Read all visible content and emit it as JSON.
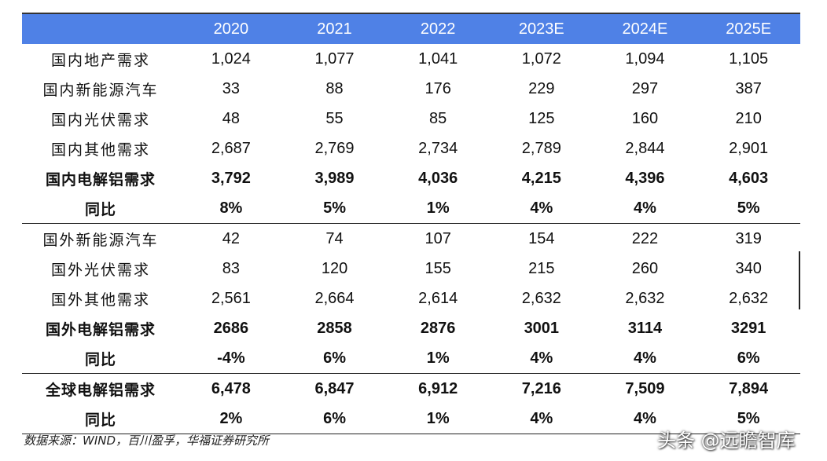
{
  "chart_data": {
    "type": "table",
    "columns": [
      "",
      "2020",
      "2021",
      "2022",
      "2023E",
      "2024E",
      "2025E"
    ],
    "rows": [
      {
        "label": "国内地产需求",
        "values": [
          "1,024",
          "1,077",
          "1,041",
          "1,072",
          "1,094",
          "1,105"
        ],
        "bold": false,
        "section_start": false
      },
      {
        "label": "国内新能源汽车",
        "values": [
          "33",
          "88",
          "176",
          "229",
          "297",
          "387"
        ],
        "bold": false,
        "section_start": false
      },
      {
        "label": "国内光伏需求",
        "values": [
          "48",
          "55",
          "85",
          "125",
          "160",
          "210"
        ],
        "bold": false,
        "section_start": false
      },
      {
        "label": "国内其他需求",
        "values": [
          "2,687",
          "2,769",
          "2,734",
          "2,789",
          "2,844",
          "2,901"
        ],
        "bold": false,
        "section_start": false
      },
      {
        "label": "国内电解铝需求",
        "values": [
          "3,792",
          "3,989",
          "4,036",
          "4,215",
          "4,396",
          "4,603"
        ],
        "bold": true,
        "section_start": false
      },
      {
        "label": "同比",
        "values": [
          "8%",
          "5%",
          "1%",
          "4%",
          "4%",
          "5%"
        ],
        "bold": true,
        "section_start": false
      },
      {
        "label": "国外新能源汽车",
        "values": [
          "42",
          "74",
          "107",
          "154",
          "222",
          "319"
        ],
        "bold": false,
        "section_start": true
      },
      {
        "label": "国外光伏需求",
        "values": [
          "83",
          "120",
          "155",
          "215",
          "260",
          "340"
        ],
        "bold": false,
        "section_start": false
      },
      {
        "label": "国外其他需求",
        "values": [
          "2,561",
          "2,664",
          "2,614",
          "2,632",
          "2,632",
          "2,632"
        ],
        "bold": false,
        "section_start": false
      },
      {
        "label": "国外电解铝需求",
        "values": [
          "2686",
          "2858",
          "2876",
          "3001",
          "3114",
          "3291"
        ],
        "bold": true,
        "section_start": false
      },
      {
        "label": "同比",
        "values": [
          "-4%",
          "6%",
          "1%",
          "4%",
          "4%",
          "6%"
        ],
        "bold": true,
        "section_start": false
      },
      {
        "label": "全球电解铝需求",
        "values": [
          "6,478",
          "6,847",
          "6,912",
          "7,216",
          "7,509",
          "7,894"
        ],
        "bold": true,
        "section_start": true
      },
      {
        "label": "同比",
        "values": [
          "2%",
          "6%",
          "1%",
          "4%",
          "4%",
          "5%"
        ],
        "bold": true,
        "section_start": false
      }
    ]
  },
  "colors": {
    "header_background": "#4f81e6",
    "header_text": "#ffffff",
    "rule_lines": "#222222"
  },
  "source_note": "数据来源：WIND，百川盈孚，华福证券研究所",
  "watermark": "头条 @远瞻智库"
}
